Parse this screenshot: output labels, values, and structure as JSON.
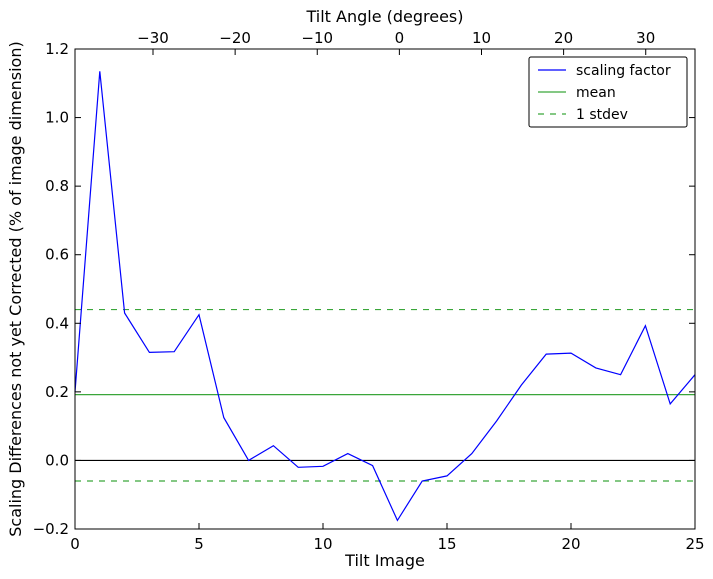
{
  "chart_data": {
    "type": "line",
    "xlabel": "Tilt Image",
    "ylabel": "Scaling Differences not yet Corrected (% of image dimension)",
    "x2label": "Tilt Angle (degrees)",
    "xlim": [
      0,
      25
    ],
    "ylim": [
      -0.2,
      1.2
    ],
    "x2lim": [
      -39.5,
      36.0
    ],
    "x_ticks": [
      0,
      5,
      10,
      15,
      20,
      25
    ],
    "y_ticks": [
      -0.2,
      0.0,
      0.2,
      0.4,
      0.6,
      0.8,
      1.0,
      1.2
    ],
    "x2_ticks": [
      -30,
      -20,
      -10,
      0,
      10,
      20,
      30
    ],
    "x_tick_labels": [
      "0",
      "5",
      "10",
      "15",
      "20",
      "25"
    ],
    "y_tick_labels": [
      "−0.2",
      "0.0",
      "0.2",
      "0.4",
      "0.6",
      "0.8",
      "1.0",
      "1.2"
    ],
    "x2_tick_labels": [
      "−30",
      "−20",
      "−10",
      "0",
      "10",
      "20",
      "30"
    ],
    "grid": false,
    "legend_position": "top-right",
    "series": [
      {
        "name": "scaling factor",
        "style": "solid",
        "color": "#0000ff",
        "x": [
          0,
          1,
          2,
          3,
          4,
          5,
          6,
          7,
          8,
          9,
          10,
          11,
          12,
          13,
          14,
          15,
          16,
          17,
          18,
          19,
          20,
          21,
          22,
          23,
          24,
          25
        ],
        "y": [
          0.2,
          1.135,
          0.43,
          0.315,
          0.317,
          0.425,
          0.125,
          0.0,
          0.043,
          -0.02,
          -0.017,
          0.02,
          -0.015,
          -0.175,
          -0.06,
          -0.045,
          0.02,
          0.115,
          0.22,
          0.31,
          0.313,
          0.27,
          0.25,
          0.393,
          0.165,
          0.25
        ]
      },
      {
        "name": "mean",
        "style": "solid",
        "color": "#3aa63a",
        "y": 0.192
      },
      {
        "name": "1 stdev",
        "style": "dashed",
        "color": "#3aa63a",
        "y_lines": [
          0.44,
          -0.06
        ]
      }
    ],
    "reference_line": {
      "y": 0.0,
      "color": "#000000"
    }
  }
}
